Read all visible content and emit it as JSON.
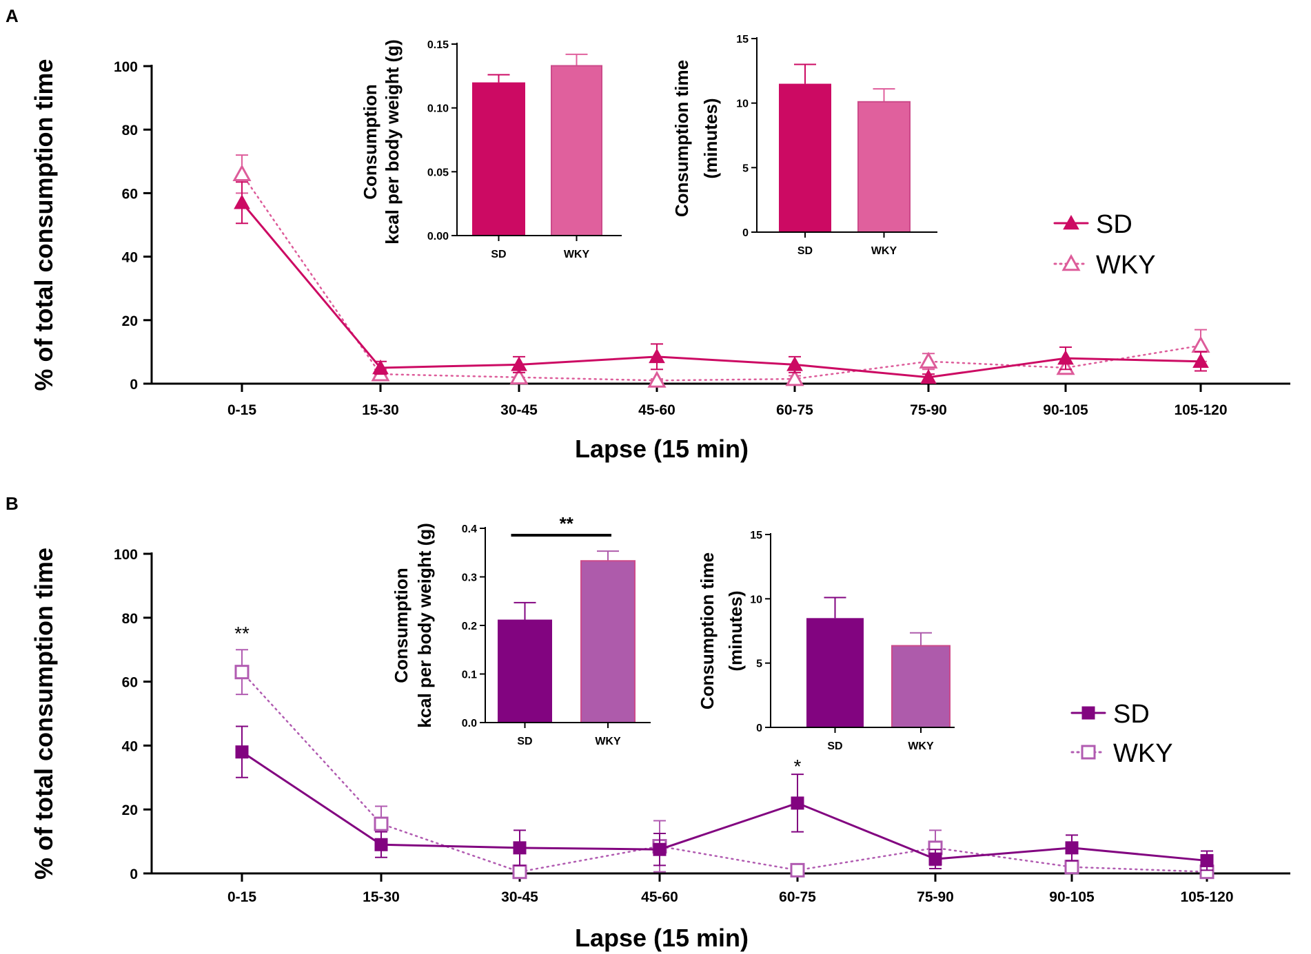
{
  "figure": {
    "categories": [
      "0-15",
      "15-30",
      "30-45",
      "45-60",
      "60-75",
      "75-90",
      "90-105",
      "105-120"
    ]
  },
  "chart_data": [
    {
      "panel": "A",
      "type": "line",
      "xlabel": "Lapse (15 min)",
      "ylabel": "% of total consumption time",
      "ylim": [
        0,
        100
      ],
      "yticks": [
        0,
        20,
        40,
        60,
        80,
        100
      ],
      "categories": [
        "0-15",
        "15-30",
        "30-45",
        "45-60",
        "60-75",
        "75-90",
        "90-105",
        "105-120"
      ],
      "series": [
        {
          "name": "SD",
          "marker": "filled-triangle",
          "line": "solid",
          "color": "#cc0a63",
          "values": [
            57,
            5,
            6,
            8.5,
            6,
            2,
            8,
            7
          ],
          "errors": [
            6.5,
            2,
            2.5,
            4,
            2.5,
            1,
            3.5,
            3
          ]
        },
        {
          "name": "WKY",
          "marker": "open-triangle",
          "line": "dotted",
          "color": "#dd5c9a",
          "values": [
            66,
            3,
            2,
            1,
            1.5,
            7,
            5,
            12
          ],
          "errors": [
            6,
            1.5,
            1.5,
            0.5,
            1,
            2.5,
            2,
            5
          ]
        }
      ],
      "significance": [],
      "legend": {
        "position": "right",
        "labels": [
          "SD",
          "WKY"
        ]
      },
      "insets": [
        {
          "type": "bar",
          "ylabel": [
            "Consumption",
            "kcal per body weight (g)"
          ],
          "categories": [
            "SD",
            "WKY"
          ],
          "values": [
            0.12,
            0.133
          ],
          "errors": [
            0.006,
            0.009
          ],
          "ylim": [
            0,
            0.15
          ],
          "yticks": [
            "0.00",
            "0.05",
            "0.10",
            "0.15"
          ],
          "colors": [
            "#cc0a63",
            "#e0609d"
          ],
          "significance": null
        },
        {
          "type": "bar",
          "ylabel": [
            "Consumption time",
            "(minutes)"
          ],
          "categories": [
            "SD",
            "WKY"
          ],
          "values": [
            11.5,
            10.1
          ],
          "errors": [
            1.5,
            1.0
          ],
          "ylim": [
            0,
            15
          ],
          "yticks": [
            "0",
            "5",
            "10",
            "15"
          ],
          "colors": [
            "#cc0a63",
            "#e0609d"
          ],
          "significance": null
        }
      ]
    },
    {
      "panel": "B",
      "type": "line",
      "xlabel": "Lapse (15 min)",
      "ylabel": "% of total consumption time",
      "ylim": [
        0,
        100
      ],
      "yticks": [
        0,
        20,
        40,
        60,
        80,
        100
      ],
      "categories": [
        "0-15",
        "15-30",
        "30-45",
        "45-60",
        "60-75",
        "75-90",
        "90-105",
        "105-120"
      ],
      "series": [
        {
          "name": "SD",
          "marker": "filled-square",
          "line": "solid",
          "color": "#820480",
          "values": [
            38,
            9,
            8,
            7.5,
            22,
            4.5,
            8,
            4
          ],
          "errors": [
            8,
            4,
            5.5,
            5,
            9,
            3,
            4,
            3
          ]
        },
        {
          "name": "WKY",
          "marker": "open-square",
          "line": "dotted",
          "color": "#b15bb1",
          "values": [
            63,
            15.5,
            0.5,
            8.5,
            1,
            8,
            2,
            0.5
          ],
          "errors": [
            7,
            5.5,
            0.5,
            8,
            0.5,
            5.5,
            1.5,
            0.5
          ]
        }
      ],
      "significance": [
        {
          "category": "0-15",
          "label": "**"
        },
        {
          "category": "60-75",
          "label": "*"
        }
      ],
      "legend": {
        "position": "right",
        "labels": [
          "SD",
          "WKY"
        ]
      },
      "insets": [
        {
          "type": "bar",
          "ylabel": [
            "Consumption",
            "kcal per body weight (g)"
          ],
          "categories": [
            "SD",
            "WKY"
          ],
          "values": [
            0.212,
            0.333
          ],
          "errors": [
            0.035,
            0.02
          ],
          "ylim": [
            0,
            0.4
          ],
          "yticks": [
            "0.0",
            "0.1",
            "0.2",
            "0.3",
            "0.4"
          ],
          "colors": [
            "#820480",
            "#ae5bab"
          ],
          "significance": "**"
        },
        {
          "type": "bar",
          "ylabel": [
            "Consumption time",
            "(minutes)"
          ],
          "categories": [
            "SD",
            "WKY"
          ],
          "values": [
            8.5,
            6.35
          ],
          "errors": [
            1.6,
            1.0
          ],
          "ylim": [
            0,
            15
          ],
          "yticks": [
            "0",
            "5",
            "10",
            "15"
          ],
          "colors": [
            "#820480",
            "#ae5bab"
          ],
          "significance": null
        }
      ]
    }
  ]
}
